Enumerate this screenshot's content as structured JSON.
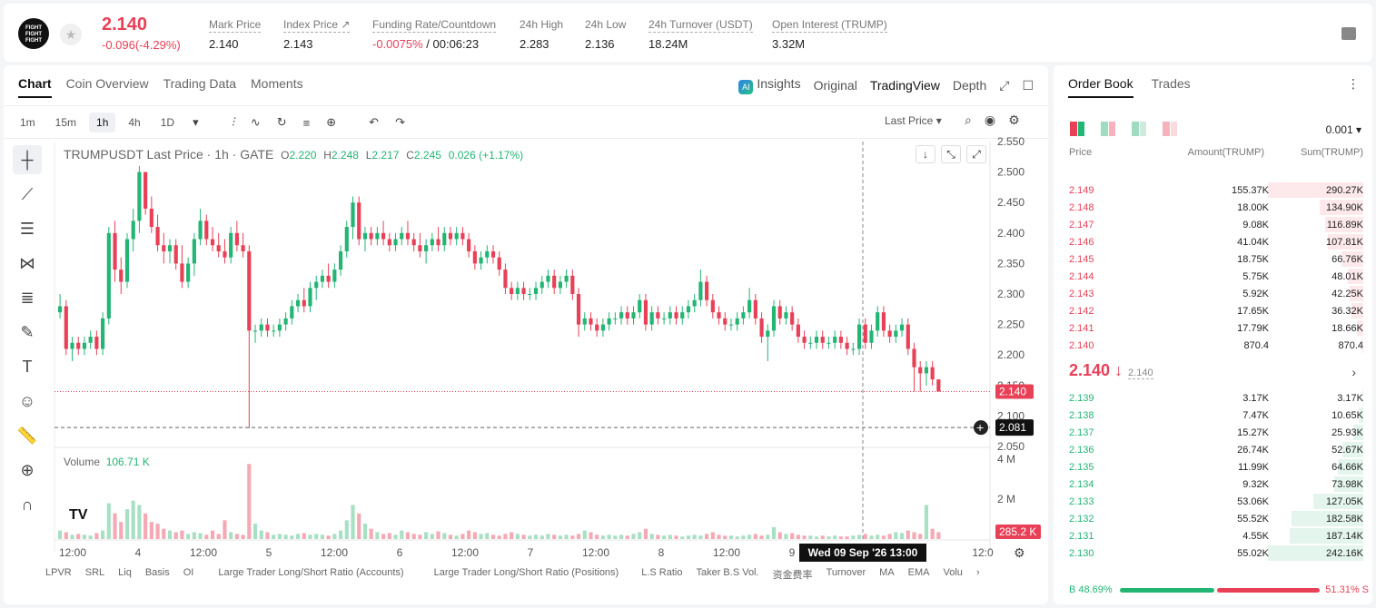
{
  "header": {
    "logo_text": "FIGHT FIGHT FIGHT",
    "last_price": "2.140",
    "change": "-0.096(-4.29%)",
    "stats": [
      {
        "label": "Mark Price",
        "value": "2.140"
      },
      {
        "label": "Index Price ↗",
        "value": "2.143"
      },
      {
        "label": "Funding Rate/Countdown",
        "value_red": "-0.0075%",
        "value": " / 00:06:23"
      },
      {
        "label": "24h High",
        "value": "2.283"
      },
      {
        "label": "24h Low",
        "value": "2.136"
      },
      {
        "label": "24h Turnover (USDT)",
        "value": "18.24M"
      },
      {
        "label": "Open Interest (TRUMP)",
        "value": "3.32M"
      }
    ]
  },
  "chart_panel": {
    "tabs": [
      "Chart",
      "Coin Overview",
      "Trading Data",
      "Moments"
    ],
    "active_tab": "Chart",
    "right_tabs": {
      "insights": "Insights",
      "original": "Original",
      "tradingview": "TradingView",
      "depth": "Depth"
    },
    "intervals": [
      "1m",
      "15m",
      "1h",
      "4h",
      "1D"
    ],
    "active_interval": "1h",
    "price_type": "Last Price",
    "symbol_line": "TRUMPUSDT Last Price · 1h · GATE",
    "ohlc": {
      "o": "2.220",
      "h": "2.248",
      "l": "2.217",
      "c": "2.245",
      "chg": "0.026 (+1.17%)"
    },
    "volume_label": "Volume",
    "volume_value": "106.71 K",
    "price_axis": [
      "2.550",
      "2.500",
      "2.450",
      "2.400",
      "2.350",
      "2.300",
      "2.250",
      "2.200",
      "2.150",
      "2.100",
      "2.050"
    ],
    "vol_axis": [
      "4 M",
      "2 M"
    ],
    "current_price_tag": "2.140",
    "crosshair_price_tag": "2.081",
    "vol_tag": "285.2 K",
    "time_axis": [
      "12:00",
      "4",
      "12:00",
      "5",
      "12:00",
      "6",
      "12:00",
      "7",
      "12:00",
      "8",
      "12:00",
      "9",
      "12:0"
    ],
    "crosshair_time": "Wed 09 Sep '26    13:00",
    "indicators": [
      "LPVR",
      "SRL",
      "Liq",
      "Basis",
      "OI",
      "Large Trader Long/Short Ratio (Accounts)",
      "Large Trader Long/Short Ratio (Positions)",
      "L.S Ratio",
      "Taker B.S Vol.",
      "资金费率",
      "Turnover",
      "MA",
      "EMA",
      "Volu"
    ]
  },
  "colors": {
    "up": "#22b573",
    "down": "#e84057"
  },
  "chart_data": {
    "type": "candlestick",
    "title": "TRUMPUSDT Last Price · 1h · GATE",
    "ylim": [
      2.05,
      2.55
    ],
    "candles": [
      [
        2.27,
        2.3,
        2.26,
        2.28
      ],
      [
        2.28,
        2.29,
        2.2,
        2.21
      ],
      [
        2.21,
        2.23,
        2.19,
        2.22
      ],
      [
        2.22,
        2.23,
        2.2,
        2.21
      ],
      [
        2.21,
        2.23,
        2.2,
        2.22
      ],
      [
        2.22,
        2.24,
        2.21,
        2.23
      ],
      [
        2.23,
        2.24,
        2.2,
        2.21
      ],
      [
        2.21,
        2.27,
        2.2,
        2.26
      ],
      [
        2.26,
        2.41,
        2.25,
        2.4
      ],
      [
        2.4,
        2.42,
        2.32,
        2.34
      ],
      [
        2.34,
        2.36,
        2.3,
        2.32
      ],
      [
        2.32,
        2.4,
        2.31,
        2.39
      ],
      [
        2.39,
        2.44,
        2.37,
        2.42
      ],
      [
        2.42,
        2.51,
        2.4,
        2.5
      ],
      [
        2.5,
        2.5,
        2.43,
        2.44
      ],
      [
        2.44,
        2.46,
        2.4,
        2.41
      ],
      [
        2.41,
        2.43,
        2.37,
        2.38
      ],
      [
        2.38,
        2.4,
        2.35,
        2.37
      ],
      [
        2.37,
        2.39,
        2.35,
        2.38
      ],
      [
        2.38,
        2.39,
        2.34,
        2.35
      ],
      [
        2.35,
        2.38,
        2.31,
        2.32
      ],
      [
        2.32,
        2.36,
        2.31,
        2.35
      ],
      [
        2.35,
        2.4,
        2.33,
        2.39
      ],
      [
        2.39,
        2.44,
        2.38,
        2.42
      ],
      [
        2.42,
        2.43,
        2.38,
        2.39
      ],
      [
        2.39,
        2.41,
        2.37,
        2.38
      ],
      [
        2.38,
        2.4,
        2.36,
        2.37
      ],
      [
        2.37,
        2.39,
        2.35,
        2.36
      ],
      [
        2.36,
        2.41,
        2.35,
        2.4
      ],
      [
        2.4,
        2.42,
        2.37,
        2.38
      ],
      [
        2.38,
        2.4,
        2.36,
        2.37
      ],
      [
        2.37,
        2.38,
        2.08,
        2.24
      ],
      [
        2.24,
        2.25,
        2.22,
        2.24
      ],
      [
        2.24,
        2.26,
        2.23,
        2.25
      ],
      [
        2.25,
        2.26,
        2.23,
        2.24
      ],
      [
        2.24,
        2.25,
        2.23,
        2.24
      ],
      [
        2.24,
        2.26,
        2.23,
        2.25
      ],
      [
        2.25,
        2.27,
        2.24,
        2.26
      ],
      [
        2.26,
        2.29,
        2.25,
        2.28
      ],
      [
        2.28,
        2.3,
        2.27,
        2.29
      ],
      [
        2.29,
        2.31,
        2.27,
        2.28
      ],
      [
        2.28,
        2.32,
        2.27,
        2.31
      ],
      [
        2.31,
        2.33,
        2.29,
        2.32
      ],
      [
        2.32,
        2.34,
        2.31,
        2.33
      ],
      [
        2.33,
        2.35,
        2.31,
        2.32
      ],
      [
        2.32,
        2.35,
        2.31,
        2.34
      ],
      [
        2.34,
        2.38,
        2.33,
        2.37
      ],
      [
        2.37,
        2.42,
        2.36,
        2.41
      ],
      [
        2.41,
        2.46,
        2.39,
        2.45
      ],
      [
        2.45,
        2.46,
        2.38,
        2.39
      ],
      [
        2.39,
        2.41,
        2.37,
        2.4
      ],
      [
        2.4,
        2.41,
        2.38,
        2.39
      ],
      [
        2.39,
        2.41,
        2.38,
        2.4
      ],
      [
        2.4,
        2.42,
        2.38,
        2.39
      ],
      [
        2.39,
        2.4,
        2.37,
        2.38
      ],
      [
        2.38,
        2.4,
        2.37,
        2.39
      ],
      [
        2.39,
        2.41,
        2.38,
        2.4
      ],
      [
        2.4,
        2.42,
        2.38,
        2.39
      ],
      [
        2.39,
        2.4,
        2.37,
        2.38
      ],
      [
        2.38,
        2.4,
        2.36,
        2.37
      ],
      [
        2.37,
        2.39,
        2.35,
        2.38
      ],
      [
        2.38,
        2.4,
        2.37,
        2.39
      ],
      [
        2.39,
        2.41,
        2.37,
        2.38
      ],
      [
        2.38,
        2.41,
        2.37,
        2.4
      ],
      [
        2.4,
        2.41,
        2.38,
        2.39
      ],
      [
        2.39,
        2.41,
        2.38,
        2.4
      ],
      [
        2.4,
        2.41,
        2.38,
        2.39
      ],
      [
        2.39,
        2.4,
        2.36,
        2.37
      ],
      [
        2.37,
        2.38,
        2.34,
        2.35
      ],
      [
        2.35,
        2.37,
        2.34,
        2.36
      ],
      [
        2.36,
        2.38,
        2.35,
        2.37
      ],
      [
        2.37,
        2.38,
        2.35,
        2.36
      ],
      [
        2.36,
        2.37,
        2.33,
        2.34
      ],
      [
        2.34,
        2.35,
        2.3,
        2.31
      ],
      [
        2.31,
        2.32,
        2.29,
        2.3
      ],
      [
        2.3,
        2.32,
        2.29,
        2.31
      ],
      [
        2.31,
        2.32,
        2.29,
        2.3
      ],
      [
        2.3,
        2.31,
        2.29,
        2.3
      ],
      [
        2.3,
        2.32,
        2.29,
        2.31
      ],
      [
        2.31,
        2.33,
        2.3,
        2.32
      ],
      [
        2.32,
        2.34,
        2.31,
        2.33
      ],
      [
        2.33,
        2.34,
        2.3,
        2.31
      ],
      [
        2.31,
        2.33,
        2.3,
        2.32
      ],
      [
        2.32,
        2.34,
        2.31,
        2.33
      ],
      [
        2.33,
        2.34,
        2.29,
        2.3
      ],
      [
        2.3,
        2.31,
        2.23,
        2.25
      ],
      [
        2.25,
        2.27,
        2.24,
        2.26
      ],
      [
        2.26,
        2.27,
        2.24,
        2.25
      ],
      [
        2.25,
        2.26,
        2.23,
        2.24
      ],
      [
        2.24,
        2.26,
        2.23,
        2.25
      ],
      [
        2.25,
        2.27,
        2.24,
        2.26
      ],
      [
        2.26,
        2.27,
        2.25,
        2.26
      ],
      [
        2.26,
        2.28,
        2.25,
        2.27
      ],
      [
        2.27,
        2.28,
        2.25,
        2.26
      ],
      [
        2.26,
        2.28,
        2.25,
        2.27
      ],
      [
        2.27,
        2.3,
        2.26,
        2.29
      ],
      [
        2.29,
        2.3,
        2.24,
        2.25
      ],
      [
        2.25,
        2.28,
        2.24,
        2.27
      ],
      [
        2.27,
        2.28,
        2.25,
        2.26
      ],
      [
        2.26,
        2.27,
        2.25,
        2.26
      ],
      [
        2.26,
        2.28,
        2.25,
        2.27
      ],
      [
        2.27,
        2.28,
        2.25,
        2.26
      ],
      [
        2.26,
        2.28,
        2.25,
        2.27
      ],
      [
        2.27,
        2.29,
        2.26,
        2.28
      ],
      [
        2.28,
        2.3,
        2.27,
        2.29
      ],
      [
        2.29,
        2.34,
        2.28,
        2.32
      ],
      [
        2.32,
        2.33,
        2.28,
        2.29
      ],
      [
        2.29,
        2.3,
        2.26,
        2.27
      ],
      [
        2.27,
        2.28,
        2.25,
        2.26
      ],
      [
        2.26,
        2.27,
        2.24,
        2.25
      ],
      [
        2.25,
        2.26,
        2.24,
        2.25
      ],
      [
        2.25,
        2.27,
        2.24,
        2.26
      ],
      [
        2.26,
        2.28,
        2.25,
        2.27
      ],
      [
        2.27,
        2.31,
        2.26,
        2.29
      ],
      [
        2.29,
        2.3,
        2.25,
        2.26
      ],
      [
        2.26,
        2.27,
        2.22,
        2.23
      ],
      [
        2.23,
        2.25,
        2.19,
        2.24
      ],
      [
        2.24,
        2.29,
        2.23,
        2.28
      ],
      [
        2.28,
        2.29,
        2.25,
        2.26
      ],
      [
        2.26,
        2.28,
        2.25,
        2.27
      ],
      [
        2.27,
        2.28,
        2.24,
        2.25
      ],
      [
        2.25,
        2.26,
        2.22,
        2.23
      ],
      [
        2.23,
        2.24,
        2.21,
        2.22
      ],
      [
        2.22,
        2.23,
        2.21,
        2.22
      ],
      [
        2.22,
        2.24,
        2.21,
        2.23
      ],
      [
        2.23,
        2.24,
        2.21,
        2.22
      ],
      [
        2.22,
        2.23,
        2.21,
        2.22
      ],
      [
        2.22,
        2.24,
        2.21,
        2.23
      ],
      [
        2.23,
        2.24,
        2.21,
        2.22
      ],
      [
        2.22,
        2.23,
        2.2,
        2.21
      ],
      [
        2.21,
        2.22,
        2.2,
        2.21
      ],
      [
        2.21,
        2.26,
        2.2,
        2.25
      ],
      [
        2.25,
        2.26,
        2.21,
        2.22
      ],
      [
        2.22,
        2.25,
        2.21,
        2.24
      ],
      [
        2.24,
        2.28,
        2.23,
        2.27
      ],
      [
        2.27,
        2.28,
        2.23,
        2.24
      ],
      [
        2.24,
        2.25,
        2.22,
        2.23
      ],
      [
        2.23,
        2.25,
        2.22,
        2.24
      ],
      [
        2.24,
        2.26,
        2.23,
        2.25
      ],
      [
        2.25,
        2.26,
        2.2,
        2.21
      ],
      [
        2.21,
        2.22,
        2.14,
        2.18
      ],
      [
        2.18,
        2.19,
        2.14,
        2.17
      ],
      [
        2.17,
        2.19,
        2.15,
        2.18
      ],
      [
        2.18,
        2.19,
        2.15,
        2.16
      ],
      [
        2.16,
        2.16,
        2.14,
        2.14
      ]
    ],
    "volume_max": 4200000,
    "volume_levels": [
      0.1,
      0.08,
      0.05,
      0.06,
      0.05,
      0.04,
      0.07,
      0.1,
      0.42,
      0.3,
      0.2,
      0.35,
      0.45,
      0.4,
      0.3,
      0.2,
      0.18,
      0.12,
      0.1,
      0.08,
      0.1,
      0.06,
      0.08,
      0.07,
      0.05,
      0.1,
      0.06,
      0.22,
      0.08,
      0.06,
      0.05,
      0.88,
      0.18,
      0.1,
      0.08,
      0.05,
      0.06,
      0.05,
      0.04,
      0.06,
      0.07,
      0.05,
      0.06,
      0.05,
      0.04,
      0.06,
      0.1,
      0.22,
      0.4,
      0.3,
      0.18,
      0.12,
      0.08,
      0.06,
      0.07,
      0.05,
      0.1,
      0.08,
      0.06,
      0.05,
      0.08,
      0.06,
      0.09,
      0.07,
      0.05,
      0.04,
      0.06,
      0.1,
      0.08,
      0.06,
      0.07,
      0.05,
      0.04,
      0.06,
      0.08,
      0.06,
      0.05,
      0.04,
      0.05,
      0.04,
      0.06,
      0.05,
      0.04,
      0.05,
      0.04,
      0.06,
      0.1,
      0.08,
      0.05,
      0.04,
      0.05,
      0.04,
      0.05,
      0.04,
      0.06,
      0.08,
      0.12,
      0.06,
      0.05,
      0.04,
      0.05,
      0.04,
      0.03,
      0.04,
      0.05,
      0.04,
      0.06,
      0.08,
      0.05,
      0.04,
      0.04,
      0.03,
      0.04,
      0.05,
      0.06,
      0.04,
      0.05,
      0.14,
      0.08,
      0.06,
      0.07,
      0.05,
      0.04,
      0.04,
      0.03,
      0.04,
      0.03,
      0.04,
      0.03,
      0.03,
      0.04,
      0.05,
      0.06,
      0.04,
      0.05,
      0.04,
      0.06,
      0.08,
      0.07,
      0.1,
      0.08,
      0.06,
      0.4,
      0.12,
      0.08,
      0.06,
      0.05,
      0.04
    ],
    "current_price": 2.14,
    "crosshair_price": 2.081
  },
  "orderbook": {
    "tabs": [
      "Order Book",
      "Trades"
    ],
    "step": "0.001",
    "headers": {
      "price": "Price",
      "amount": "Amount(TRUMP)",
      "sum": "Sum(TRUMP)"
    },
    "asks": [
      {
        "price": "2.149",
        "amount": "155.37K",
        "sum": "290.27K",
        "depth": 1.0
      },
      {
        "price": "2.148",
        "amount": "18.00K",
        "sum": "134.90K",
        "depth": 0.46
      },
      {
        "price": "2.147",
        "amount": "9.08K",
        "sum": "116.89K",
        "depth": 0.4
      },
      {
        "price": "2.146",
        "amount": "41.04K",
        "sum": "107.81K",
        "depth": 0.37
      },
      {
        "price": "2.145",
        "amount": "18.75K",
        "sum": "66.76K",
        "depth": 0.23
      },
      {
        "price": "2.144",
        "amount": "5.75K",
        "sum": "48.01K",
        "depth": 0.165
      },
      {
        "price": "2.143",
        "amount": "5.92K",
        "sum": "42.25K",
        "depth": 0.145
      },
      {
        "price": "2.142",
        "amount": "17.65K",
        "sum": "36.32K",
        "depth": 0.125
      },
      {
        "price": "2.141",
        "amount": "17.79K",
        "sum": "18.66K",
        "depth": 0.065
      },
      {
        "price": "2.140",
        "amount": "870.4",
        "sum": "870.4",
        "depth": 0.005
      }
    ],
    "mid_price": "2.140 ↓",
    "mid_mark": "2.140",
    "bids": [
      {
        "price": "2.139",
        "amount": "3.17K",
        "sum": "3.17K",
        "depth": 0.013
      },
      {
        "price": "2.138",
        "amount": "7.47K",
        "sum": "10.65K",
        "depth": 0.044
      },
      {
        "price": "2.137",
        "amount": "15.27K",
        "sum": "25.93K",
        "depth": 0.107
      },
      {
        "price": "2.136",
        "amount": "26.74K",
        "sum": "52.67K",
        "depth": 0.217
      },
      {
        "price": "2.135",
        "amount": "11.99K",
        "sum": "64.66K",
        "depth": 0.267
      },
      {
        "price": "2.134",
        "amount": "9.32K",
        "sum": "73.98K",
        "depth": 0.305
      },
      {
        "price": "2.133",
        "amount": "53.06K",
        "sum": "127.05K",
        "depth": 0.525
      },
      {
        "price": "2.132",
        "amount": "55.52K",
        "sum": "182.58K",
        "depth": 0.754
      },
      {
        "price": "2.131",
        "amount": "4.55K",
        "sum": "187.14K",
        "depth": 0.773
      },
      {
        "price": "2.130",
        "amount": "55.02K",
        "sum": "242.16K",
        "depth": 1.0
      }
    ],
    "buy_ratio": "B 48.69%",
    "sell_ratio": "51.31% S",
    "buy_fraction": 0.4869
  }
}
